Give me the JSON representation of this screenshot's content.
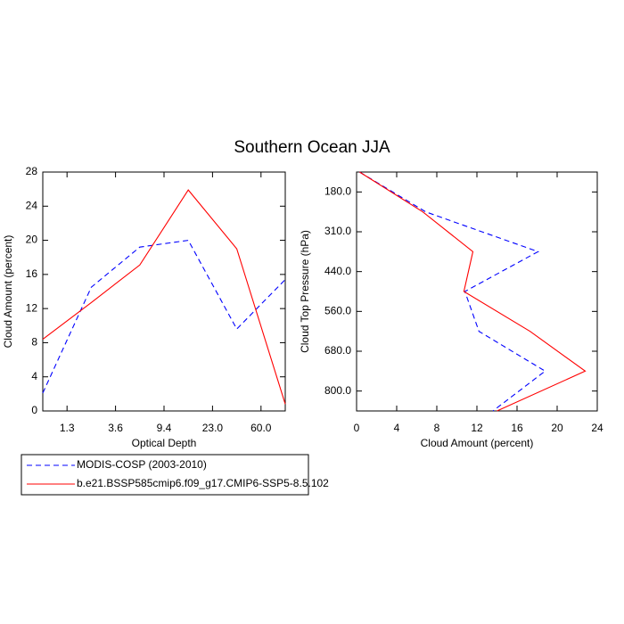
{
  "chart_data": [
    {
      "type": "line",
      "title": "Southern Ocean JJA",
      "x_label": "Optical Depth",
      "y_label": "Cloud Amount (percent)",
      "x": [
        0,
        1,
        2,
        3,
        4,
        5
      ],
      "xlim": [
        0,
        5
      ],
      "xticks": [
        {
          "value": 0.5,
          "label": "1.3"
        },
        {
          "value": 1.5,
          "label": "3.6"
        },
        {
          "value": 2.5,
          "label": "9.4"
        },
        {
          "value": 3.5,
          "label": "23.0"
        },
        {
          "value": 4.5,
          "label": "60.0"
        }
      ],
      "ylim": [
        0,
        28
      ],
      "yticks": [
        0,
        4,
        8,
        12,
        16,
        20,
        24,
        28
      ],
      "series": [
        {
          "name": "MODIS-COSP (2003-2010)",
          "color": "#0000ff",
          "dash": true,
          "values": [
            2.1,
            14.5,
            19.2,
            20.0,
            9.6,
            15.4
          ]
        },
        {
          "name": "b.e21.BSSP585cmip6.f09_g17.CMIP6-SSP5-8.5.102",
          "color": "#ff0000",
          "dash": false,
          "values": [
            8.4,
            12.7,
            17.1,
            25.9,
            19.0,
            0.8
          ]
        }
      ]
    },
    {
      "type": "line",
      "orientation": "horizontal",
      "x_label": "Cloud Amount (percent)",
      "y_label": "Cloud Top Pressure (hPa)",
      "y": [
        0,
        1,
        2,
        3,
        4,
        5,
        6
      ],
      "ylim": [
        0,
        6
      ],
      "y_reverse": true,
      "yticks": [
        {
          "value": 0.5,
          "label": "180.0"
        },
        {
          "value": 1.5,
          "label": "310.0"
        },
        {
          "value": 2.5,
          "label": "440.0"
        },
        {
          "value": 3.5,
          "label": "560.0"
        },
        {
          "value": 4.5,
          "label": "680.0"
        },
        {
          "value": 5.5,
          "label": "800.0"
        }
      ],
      "xlim": [
        0,
        24
      ],
      "xticks": [
        0,
        4,
        8,
        12,
        16,
        20,
        24
      ],
      "series": [
        {
          "color": "#0000ff",
          "dash": true,
          "values": [
            0.3,
            6.9,
            18.1,
            10.8,
            12.2,
            18.8,
            13.6
          ]
        },
        {
          "color": "#ff0000",
          "dash": false,
          "values": [
            0.3,
            6.6,
            11.6,
            10.7,
            17.3,
            22.8,
            14.0
          ]
        }
      ]
    }
  ]
}
